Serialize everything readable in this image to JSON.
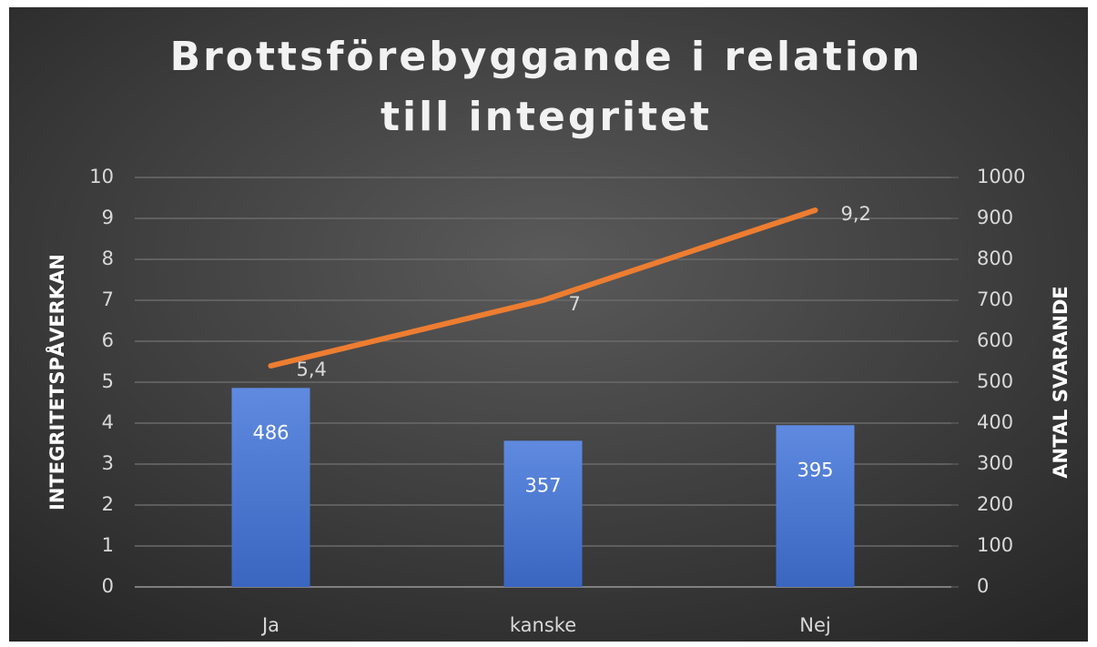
{
  "chart_data": {
    "type": "combo",
    "title": "Brottsförebyggande i relation till integritet",
    "categories": [
      "Ja",
      "kanske",
      "Nej"
    ],
    "series": [
      {
        "kind": "bar",
        "axis": "y2",
        "color": "#4a76cf",
        "values": [
          486,
          357,
          395
        ]
      },
      {
        "kind": "line",
        "axis": "y",
        "color": "#ed7d31",
        "values": [
          5.4,
          7,
          9.2
        ],
        "value_labels": [
          "5,4",
          "7",
          "9,2"
        ]
      }
    ],
    "ylabel": "INTEGRITETSPÅVERKAN",
    "y2label": "ANTAL SVARANDE",
    "ylim": [
      0,
      10
    ],
    "yticks": [
      0,
      1,
      2,
      3,
      4,
      5,
      6,
      7,
      8,
      9,
      10
    ],
    "y2lim": [
      0,
      1000
    ],
    "y2ticks": [
      0,
      100,
      200,
      300,
      400,
      500,
      600,
      700,
      800,
      900,
      1000
    ],
    "grid": true
  }
}
